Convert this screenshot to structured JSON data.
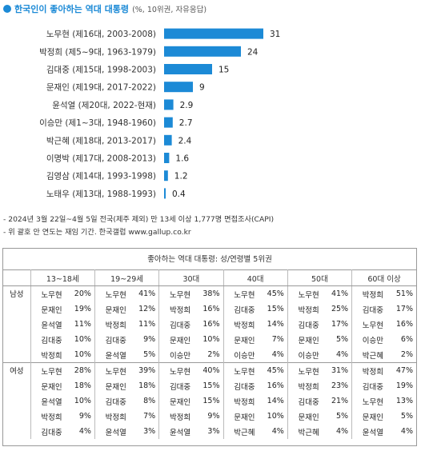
{
  "header": {
    "title": "한국인이 좋아하는 역대 대통령",
    "subtitle": "(%, 10위권, 자유응답)"
  },
  "chart_data": {
    "type": "bar",
    "orientation": "horizontal",
    "bar_color": "#1c8ad6",
    "categories": [
      "노무현 (제16대, 2003-2008)",
      "박정희 (제5~9대, 1963-1979)",
      "김대중 (제15대, 1998-2003)",
      "문재인 (제19대, 2017-2022)",
      "윤석열 (제20대, 2022-현재)",
      "이승만 (제1~3대, 1948-1960)",
      "박근혜 (제18대, 2013-2017)",
      "이명박 (제17대, 2008-2013)",
      "김영삼 (제14대, 1993-1998)",
      "노태우 (제13대, 1988-1993)"
    ],
    "values": [
      31,
      24,
      15,
      9,
      2.9,
      2.7,
      2.4,
      1.6,
      1.2,
      0.4
    ],
    "value_labels": [
      "31",
      "24",
      "15",
      "9",
      "2.9",
      "2.7",
      "2.4",
      "1.6",
      "1.2",
      "0.4"
    ],
    "xlim": [
      0,
      31
    ]
  },
  "notes": [
    "- 2024년 3월 22일~4월 5일 전국(제주 제외) 만 13세 이상 1,777명 면접조사(CAPI)",
    "- 위 괄호 안 연도는 재임 기간. 한국갤럽 www.gallup.co.kr"
  ],
  "table": {
    "title": "좋아하는 역대 대통령: 성/연령별 5위권",
    "columns": [
      "13~18세",
      "19~29세",
      "30대",
      "40대",
      "50대",
      "60대 이상"
    ],
    "groups": [
      {
        "label": "남성",
        "rows": [
          [
            [
              "노무현",
              "20%"
            ],
            [
              "노무현",
              "41%"
            ],
            [
              "노무현",
              "38%"
            ],
            [
              "노무현",
              "45%"
            ],
            [
              "노무현",
              "41%"
            ],
            [
              "박정희",
              "51%"
            ]
          ],
          [
            [
              "문재인",
              "19%"
            ],
            [
              "문재인",
              "12%"
            ],
            [
              "박정희",
              "16%"
            ],
            [
              "김대중",
              "15%"
            ],
            [
              "박정희",
              "25%"
            ],
            [
              "김대중",
              "17%"
            ]
          ],
          [
            [
              "윤석열",
              "11%"
            ],
            [
              "박정희",
              "11%"
            ],
            [
              "김대중",
              "16%"
            ],
            [
              "박정희",
              "14%"
            ],
            [
              "김대중",
              "17%"
            ],
            [
              "노무현",
              "16%"
            ]
          ],
          [
            [
              "김대중",
              "10%"
            ],
            [
              "김대중",
              "9%"
            ],
            [
              "문재인",
              "10%"
            ],
            [
              "문재인",
              "7%"
            ],
            [
              "문재인",
              "5%"
            ],
            [
              "이승만",
              "6%"
            ]
          ],
          [
            [
              "박정희",
              "10%"
            ],
            [
              "윤석열",
              "5%"
            ],
            [
              "이승만",
              "2%"
            ],
            [
              "이승만",
              "4%"
            ],
            [
              "이승만",
              "4%"
            ],
            [
              "박근혜",
              "2%"
            ]
          ]
        ]
      },
      {
        "label": "여성",
        "rows": [
          [
            [
              "노무현",
              "28%"
            ],
            [
              "노무현",
              "39%"
            ],
            [
              "노무현",
              "40%"
            ],
            [
              "노무현",
              "45%"
            ],
            [
              "노무현",
              "31%"
            ],
            [
              "박정희",
              "47%"
            ]
          ],
          [
            [
              "문재인",
              "18%"
            ],
            [
              "문재인",
              "18%"
            ],
            [
              "김대중",
              "15%"
            ],
            [
              "김대중",
              "16%"
            ],
            [
              "박정희",
              "23%"
            ],
            [
              "김대중",
              "19%"
            ]
          ],
          [
            [
              "윤석열",
              "10%"
            ],
            [
              "김대중",
              "8%"
            ],
            [
              "문재인",
              "15%"
            ],
            [
              "박정희",
              "14%"
            ],
            [
              "김대중",
              "21%"
            ],
            [
              "노무현",
              "13%"
            ]
          ],
          [
            [
              "박정희",
              "9%"
            ],
            [
              "박정희",
              "7%"
            ],
            [
              "박정희",
              "9%"
            ],
            [
              "문재인",
              "10%"
            ],
            [
              "문재인",
              "5%"
            ],
            [
              "문재인",
              "5%"
            ]
          ],
          [
            [
              "김대중",
              "4%"
            ],
            [
              "윤석열",
              "3%"
            ],
            [
              "윤석열",
              "3%"
            ],
            [
              "박근혜",
              "4%"
            ],
            [
              "박근혜",
              "4%"
            ],
            [
              "윤석열",
              "4%"
            ]
          ]
        ]
      }
    ]
  }
}
